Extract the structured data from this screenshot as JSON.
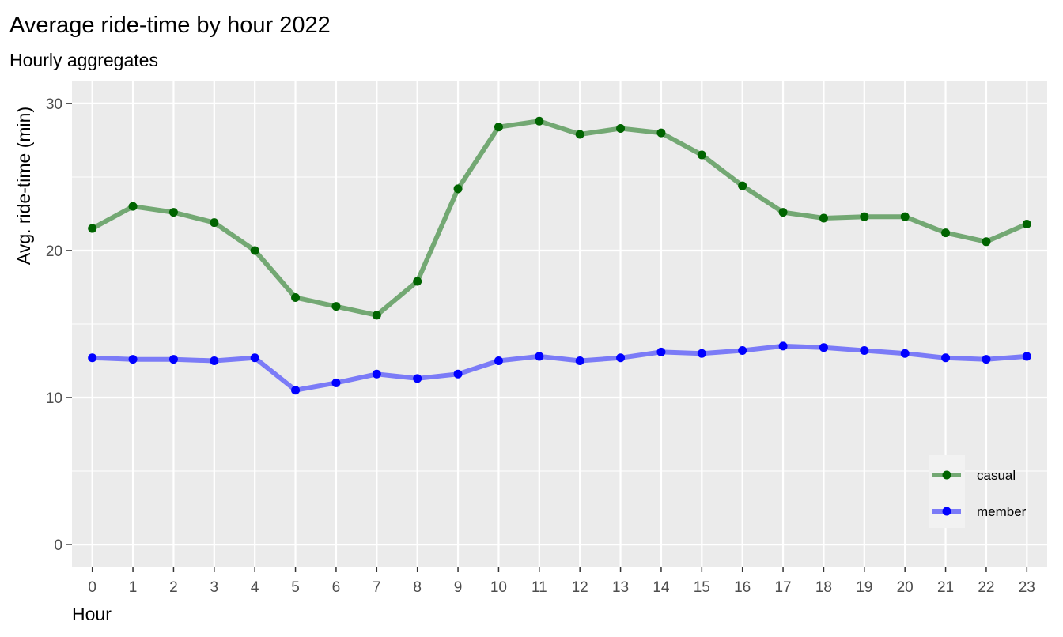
{
  "chart_data": {
    "type": "line",
    "title": "Average ride-time by hour 2022",
    "subtitle": "Hourly aggregates",
    "xlabel": "Hour",
    "ylabel": "Avg. ride-time (min)",
    "x": [
      0,
      1,
      2,
      3,
      4,
      5,
      6,
      7,
      8,
      9,
      10,
      11,
      12,
      13,
      14,
      15,
      16,
      17,
      18,
      19,
      20,
      21,
      22,
      23
    ],
    "xlim": [
      -0.5,
      23.5
    ],
    "ylim": [
      -1.5,
      31.5
    ],
    "yticks": [
      0,
      10,
      20,
      30
    ],
    "grid": true,
    "legend_position": "bottom-right",
    "series": [
      {
        "name": "casual",
        "line_color": "#73a873",
        "point_color": "#006400",
        "values": [
          21.5,
          23.0,
          22.6,
          21.9,
          20.0,
          16.8,
          16.2,
          15.6,
          17.9,
          24.2,
          28.4,
          28.8,
          27.9,
          28.3,
          28.0,
          26.5,
          24.4,
          22.6,
          22.2,
          22.3,
          22.3,
          21.2,
          20.6,
          21.8
        ]
      },
      {
        "name": "member",
        "line_color": "#7b7bf7",
        "point_color": "#0000ff",
        "values": [
          12.7,
          12.6,
          12.6,
          12.5,
          12.7,
          10.5,
          11.0,
          11.6,
          11.3,
          11.6,
          12.5,
          12.8,
          12.5,
          12.7,
          13.1,
          13.0,
          13.2,
          13.5,
          13.4,
          13.2,
          13.0,
          12.7,
          12.6,
          12.8
        ]
      }
    ]
  }
}
